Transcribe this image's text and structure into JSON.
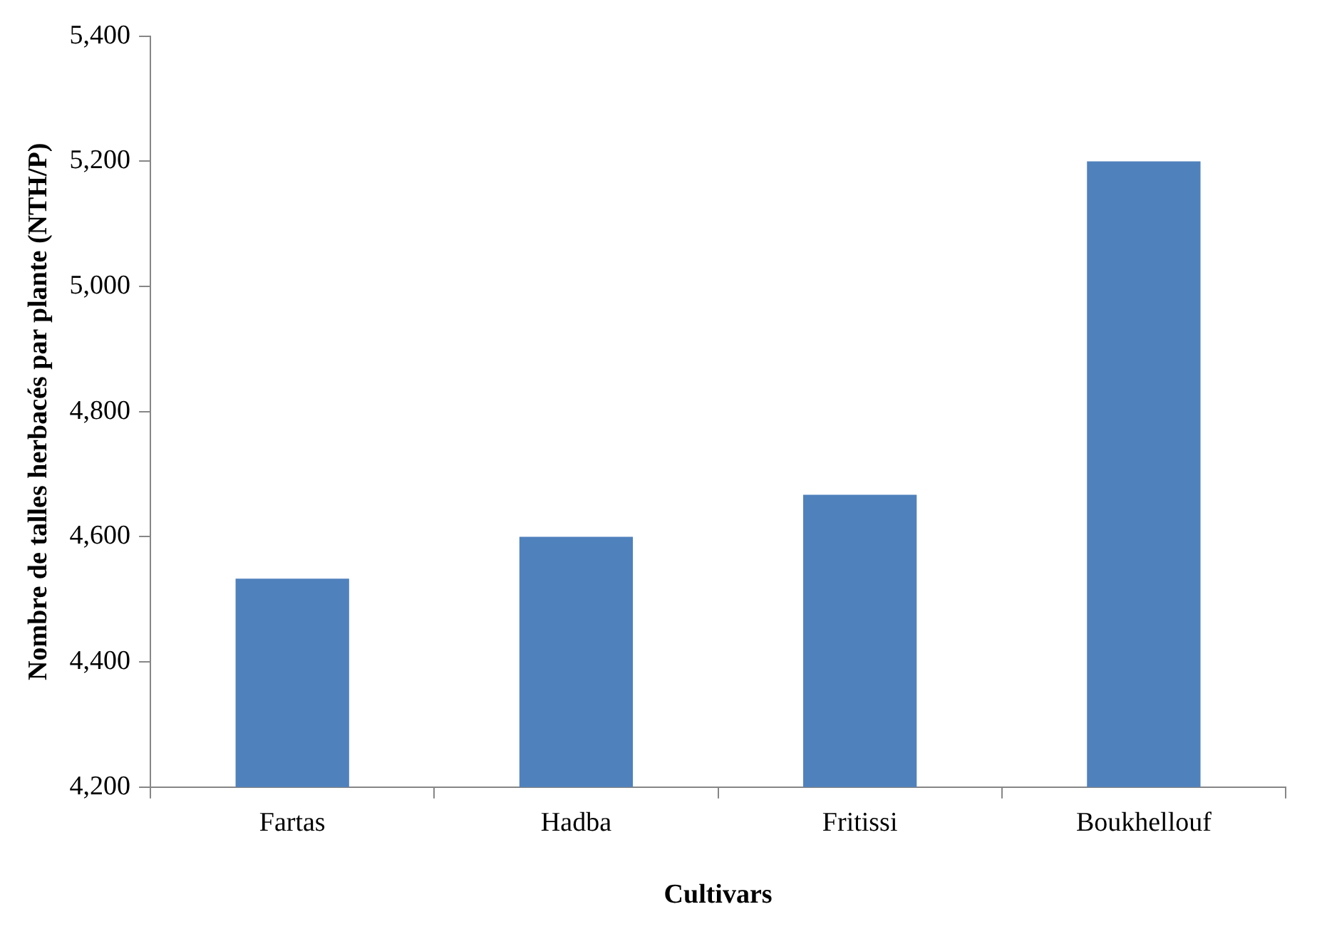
{
  "chart_data": {
    "type": "bar",
    "xlabel": "Cultivars",
    "ylabel": "Nombre de talles herbacés par plante (NTH/P)",
    "categories": [
      "Fartas",
      "Hadba",
      "Fritissi",
      "Boukhellouf"
    ],
    "values": [
      4533,
      4600,
      4667,
      5200
    ],
    "color": "#4f81bd",
    "ylim": [
      4200,
      5400
    ],
    "yticks": [
      {
        "value": 4200,
        "label": "4,200"
      },
      {
        "value": 4400,
        "label": "4,400"
      },
      {
        "value": 4600,
        "label": "4,600"
      },
      {
        "value": 4800,
        "label": "4,800"
      },
      {
        "value": 5000,
        "label": "5,000"
      },
      {
        "value": 5200,
        "label": "5,200"
      },
      {
        "value": 5400,
        "label": "5,400"
      }
    ],
    "grid": false,
    "legend": false
  }
}
